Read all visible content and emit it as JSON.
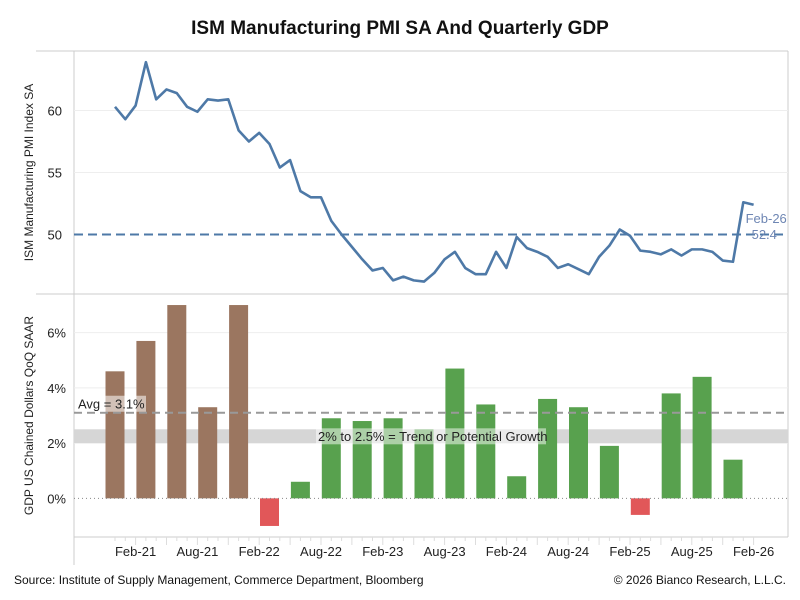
{
  "chart_data": [
    {
      "type": "line",
      "title": "ISM Manufacturing PMI SA And Quarterly GDP",
      "ylabel": "ISM Manufacturing PMI Index SA",
      "ylim": [
        45.2,
        64.8
      ],
      "yticks": [
        50,
        55,
        60
      ],
      "reference_line": 50,
      "end_label": {
        "date": "Feb-26",
        "value": "52.4"
      },
      "color": "#4e79a7",
      "x": [
        "Dec-20",
        "Jan-21",
        "Feb-21",
        "Mar-21",
        "Apr-21",
        "May-21",
        "Jun-21",
        "Jul-21",
        "Aug-21",
        "Sep-21",
        "Oct-21",
        "Nov-21",
        "Dec-21",
        "Jan-22",
        "Feb-22",
        "Mar-22",
        "Apr-22",
        "May-22",
        "Jun-22",
        "Jul-22",
        "Aug-22",
        "Sep-22",
        "Oct-22",
        "Nov-22",
        "Dec-22",
        "Jan-23",
        "Feb-23",
        "Mar-23",
        "Apr-23",
        "May-23",
        "Jun-23",
        "Jul-23",
        "Aug-23",
        "Sep-23",
        "Oct-23",
        "Nov-23",
        "Dec-23",
        "Jan-24",
        "Feb-24",
        "Mar-24",
        "Apr-24",
        "May-24",
        "Jun-24",
        "Jul-24",
        "Aug-24",
        "Sep-24",
        "Oct-24",
        "Nov-24",
        "Dec-24",
        "Jan-25",
        "Feb-25",
        "Mar-25",
        "Apr-25",
        "May-25",
        "Jun-25",
        "Jul-25",
        "Aug-25",
        "Sep-25",
        "Oct-25",
        "Nov-25",
        "Dec-25",
        "Jan-26",
        "Feb-26"
      ],
      "values": [
        60.3,
        59.3,
        60.4,
        63.9,
        60.9,
        61.7,
        61.4,
        60.3,
        59.9,
        60.9,
        60.8,
        60.9,
        58.4,
        57.5,
        58.2,
        57.3,
        55.4,
        56.0,
        53.5,
        53.0,
        53.0,
        51.1,
        50.0,
        49.0,
        48.0,
        47.1,
        47.3,
        46.3,
        46.6,
        46.3,
        46.2,
        46.9,
        48.0,
        48.6,
        47.3,
        46.8,
        46.8,
        48.6,
        47.3,
        49.8,
        48.9,
        48.6,
        48.2,
        47.3,
        47.6,
        47.2,
        46.8,
        48.2,
        49.1,
        50.4,
        49.9,
        48.7,
        48.6,
        48.4,
        48.8,
        48.3,
        48.8,
        48.8,
        48.6,
        47.9,
        47.8,
        52.6,
        52.4
      ]
    },
    {
      "type": "bar",
      "ylabel": "GDP US Chained Dollars QoQ SAAR",
      "ylim": [
        -1.4,
        7.4
      ],
      "yticks": [
        "0%",
        "2%",
        "4%",
        "6%"
      ],
      "ytick_values": [
        0,
        2,
        4,
        6
      ],
      "categories": [
        "Q4-20",
        "Q1-21",
        "Q2-21",
        "Q3-21",
        "Q4-21",
        "Q1-22",
        "Q2-22",
        "Q3-22",
        "Q4-22",
        "Q1-23",
        "Q2-23",
        "Q3-23",
        "Q4-23",
        "Q1-24",
        "Q2-24",
        "Q3-24",
        "Q4-24",
        "Q1-25",
        "Q2-25",
        "Q3-25",
        "Q4-25"
      ],
      "category_months": [
        "Dec-20",
        "Mar-21",
        "Jun-21",
        "Sep-21",
        "Dec-21",
        "Mar-22",
        "Jun-22",
        "Sep-22",
        "Dec-22",
        "Mar-23",
        "Jun-23",
        "Sep-23",
        "Dec-23",
        "Mar-24",
        "Jun-24",
        "Sep-24",
        "Dec-24",
        "Mar-25",
        "Jun-25",
        "Sep-25",
        "Dec-25"
      ],
      "values": [
        4.6,
        5.7,
        7.0,
        3.3,
        7.0,
        -1.0,
        0.6,
        2.9,
        2.8,
        2.9,
        2.5,
        4.7,
        3.4,
        0.8,
        3.6,
        3.3,
        1.9,
        -0.6,
        3.8,
        4.4,
        1.4
      ],
      "colors": {
        "early": "#9b7660",
        "positive": "#58a14e",
        "negative": "#e15759"
      },
      "brown_count": 5,
      "avg_line": {
        "value": 3.1,
        "label": "Avg = 3.1%"
      },
      "band": {
        "from": 2.0,
        "to": 2.5,
        "label": "2% to 2.5% = Trend or Potential Growth"
      }
    }
  ],
  "xaxis": {
    "tick_labels": [
      "Feb-21",
      "Aug-21",
      "Feb-22",
      "Aug-22",
      "Feb-23",
      "Aug-23",
      "Feb-24",
      "Aug-24",
      "Feb-25",
      "Aug-25",
      "Feb-26"
    ]
  },
  "footer": {
    "source": "Source: Institute of Supply Management, Commerce Department, Bloomberg",
    "copyright": "© 2026 Bianco Research, L.L.C."
  }
}
